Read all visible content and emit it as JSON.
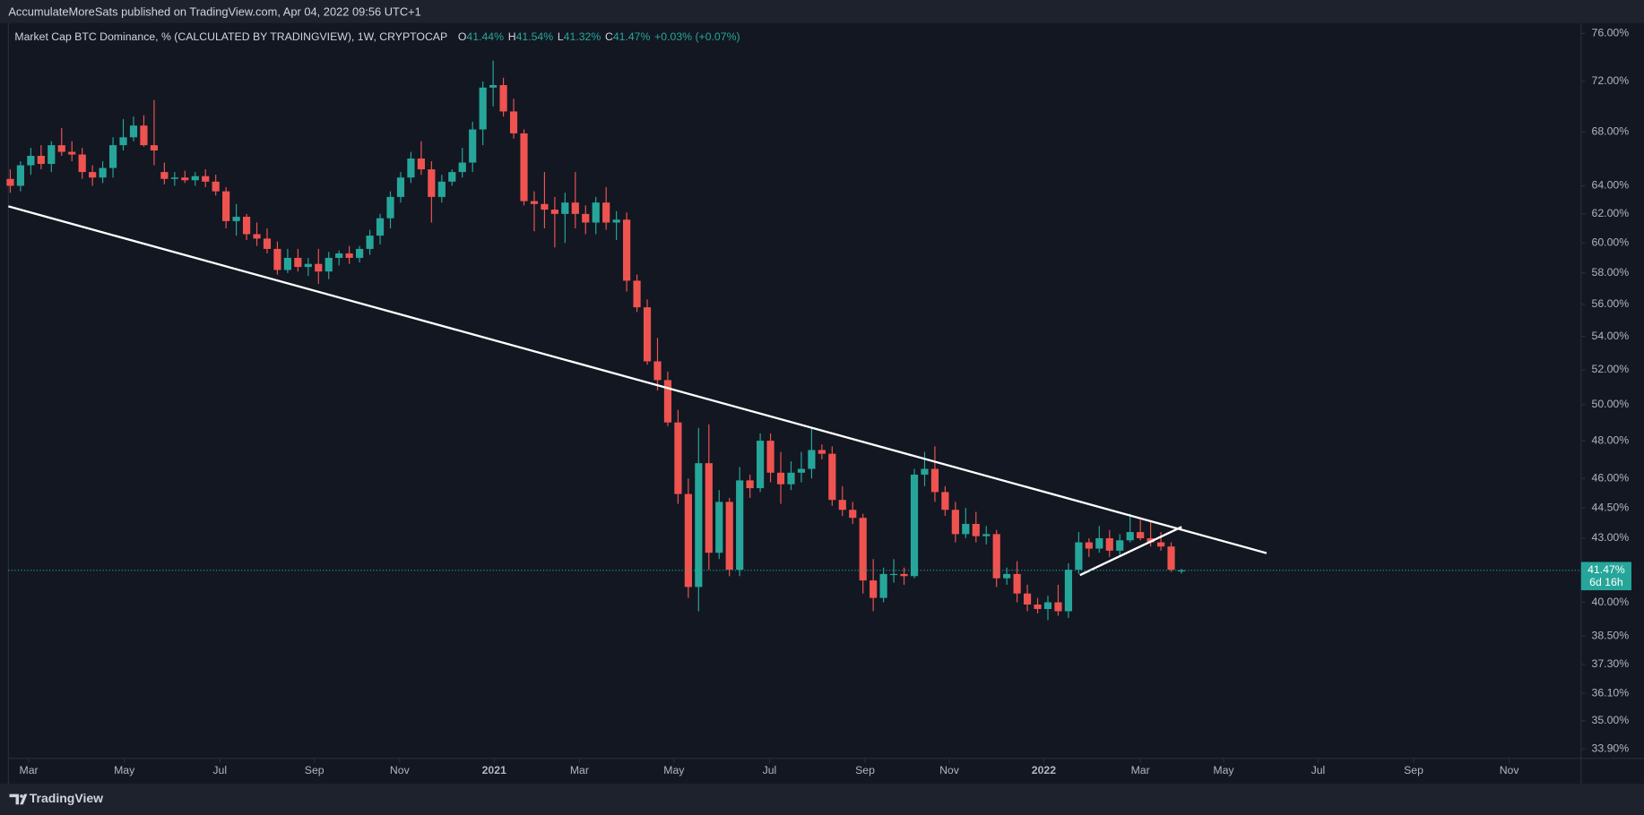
{
  "header": {
    "publisher": "AccumulateMoreSats published on TradingView.com, Apr 04, 2022 09:56 UTC+1"
  },
  "chart_data": {
    "type": "candlestick",
    "title": "Market Cap BTC Dominance, % (CALCULATED BY TRADINGVIEW), 1W, CRYPTOCAP",
    "legend": [
      {
        "key": "O",
        "value": "41.44%"
      },
      {
        "key": "H",
        "value": "41.54%"
      },
      {
        "key": "L",
        "value": "41.32%"
      },
      {
        "key": "C",
        "value": "41.47%"
      }
    ],
    "change": "+0.03% (+0.07%)",
    "open": [
      64.5,
      64.0,
      65.5,
      66.2,
      65.6,
      67.0,
      66.5,
      66.3,
      65.0,
      64.6,
      65.3,
      67.0,
      67.6,
      68.5,
      67.0,
      65.0,
      64.5,
      64.6,
      64.4,
      64.7,
      64.3,
      63.6,
      61.5,
      61.8,
      60.6,
      60.3,
      59.6,
      58.2,
      59.0,
      58.4,
      58.6,
      58.1,
      59.0,
      59.3,
      59.0,
      59.6,
      60.5,
      61.7,
      63.2,
      64.6,
      66.0,
      65.2,
      63.2,
      64.3,
      65.0,
      65.7,
      68.2,
      71.5,
      71.7,
      69.6,
      67.9,
      62.9,
      62.7,
      62.3,
      62.0,
      62.8,
      62.0,
      61.4,
      62.8,
      61.4,
      61.6,
      57.5,
      55.8,
      52.5,
      51.4,
      49.0,
      45.2,
      40.7,
      46.8,
      42.3,
      44.8,
      41.5,
      45.9,
      45.5,
      48.0,
      46.3,
      45.7,
      46.3,
      46.5,
      47.5,
      47.3,
      44.9,
      44.4,
      44.0,
      41.0,
      40.2,
      41.3,
      41.3,
      41.2,
      46.2,
      46.5,
      45.3,
      44.4,
      43.2,
      43.7,
      43.1,
      43.2,
      41.1,
      41.3,
      40.4,
      39.9,
      39.7,
      40.0,
      39.6,
      41.5,
      42.8,
      42.5,
      43.0,
      42.4,
      42.9,
      43.3,
      43.0,
      42.8,
      42.6,
      41.44
    ],
    "high": [
      65.2,
      65.8,
      66.8,
      67.0,
      67.3,
      68.3,
      67.3,
      66.8,
      65.5,
      65.8,
      67.6,
      69.0,
      69.2,
      69.3,
      70.5,
      65.7,
      65.0,
      65.1,
      65.0,
      65.2,
      64.8,
      63.9,
      62.7,
      62.0,
      61.4,
      61.0,
      60.1,
      59.6,
      59.6,
      59.0,
      59.6,
      59.4,
      59.5,
      59.8,
      59.8,
      60.9,
      62.0,
      63.6,
      65.0,
      66.5,
      67.3,
      65.8,
      64.8,
      65.2,
      66.8,
      68.8,
      72.0,
      73.7,
      72.3,
      70.6,
      68.2,
      63.6,
      65.0,
      63.2,
      63.5,
      65.0,
      62.6,
      63.2,
      63.9,
      62.2,
      62.1,
      57.9,
      56.3,
      53.9,
      51.9,
      49.7,
      46.0,
      48.7,
      48.9,
      45.4,
      45.0,
      46.6,
      46.2,
      48.4,
      48.4,
      47.4,
      46.9,
      47.4,
      48.7,
      47.8,
      47.7,
      45.6,
      44.8,
      44.2,
      42.0,
      41.6,
      42.0,
      41.6,
      46.5,
      47.4,
      47.7,
      45.6,
      44.8,
      44.5,
      44.3,
      43.6,
      43.4,
      41.6,
      41.9,
      40.8,
      40.2,
      40.3,
      40.8,
      41.8,
      43.3,
      43.0,
      43.6,
      43.4,
      43.2,
      44.2,
      43.9,
      43.8,
      43.3,
      42.8,
      41.54
    ],
    "low": [
      63.5,
      63.6,
      64.8,
      65.2,
      65.0,
      66.2,
      65.8,
      64.5,
      64.0,
      64.2,
      64.6,
      66.6,
      67.3,
      66.9,
      65.5,
      64.1,
      64.0,
      64.2,
      64.0,
      63.9,
      63.3,
      61.0,
      60.5,
      60.2,
      59.8,
      59.3,
      57.9,
      58.0,
      58.1,
      57.8,
      57.3,
      57.6,
      58.5,
      58.6,
      58.7,
      59.2,
      59.9,
      61.0,
      62.8,
      64.2,
      64.8,
      61.4,
      62.8,
      64.0,
      64.6,
      65.0,
      67.0,
      70.0,
      69.2,
      67.5,
      62.6,
      60.8,
      61.0,
      59.7,
      60.0,
      61.0,
      60.6,
      60.6,
      60.9,
      60.2,
      56.8,
      55.5,
      52.3,
      50.8,
      48.8,
      44.7,
      40.2,
      39.6,
      41.5,
      42.0,
      41.2,
      41.2,
      45.0,
      45.3,
      45.8,
      44.7,
      45.4,
      45.8,
      46.0,
      47.0,
      44.6,
      44.1,
      43.7,
      40.4,
      39.6,
      40.0,
      40.9,
      40.8,
      41.1,
      45.6,
      44.8,
      44.1,
      42.8,
      43.0,
      42.8,
      42.7,
      40.7,
      40.8,
      40.0,
      39.6,
      39.5,
      39.2,
      39.4,
      39.3,
      41.3,
      42.1,
      42.3,
      42.1,
      42.2,
      42.8,
      42.9,
      42.6,
      42.4,
      41.4,
      41.32
    ],
    "close": [
      64.0,
      65.5,
      66.2,
      65.6,
      67.0,
      66.5,
      66.3,
      65.0,
      64.6,
      65.3,
      67.0,
      67.6,
      68.5,
      67.0,
      66.6,
      64.5,
      64.6,
      64.4,
      64.7,
      64.3,
      63.6,
      61.5,
      61.8,
      60.6,
      60.3,
      59.6,
      58.2,
      59.0,
      58.4,
      58.6,
      58.1,
      59.0,
      59.3,
      59.0,
      59.6,
      60.5,
      61.7,
      63.2,
      64.6,
      66.0,
      65.2,
      63.2,
      64.3,
      65.0,
      65.7,
      68.2,
      71.5,
      71.7,
      69.6,
      67.9,
      62.9,
      62.7,
      62.3,
      62.0,
      62.8,
      62.0,
      61.4,
      62.8,
      61.4,
      61.6,
      57.5,
      55.8,
      52.5,
      51.4,
      49.0,
      45.2,
      40.7,
      46.8,
      42.3,
      44.8,
      41.5,
      45.9,
      45.5,
      48.0,
      46.3,
      45.7,
      46.3,
      46.5,
      47.5,
      47.3,
      44.9,
      44.4,
      44.0,
      41.0,
      40.2,
      41.3,
      41.3,
      41.2,
      46.2,
      46.5,
      45.3,
      44.4,
      43.2,
      43.7,
      43.1,
      43.2,
      41.1,
      41.3,
      40.4,
      39.9,
      39.7,
      40.0,
      39.6,
      41.5,
      42.8,
      42.5,
      43.0,
      42.4,
      42.9,
      43.3,
      43.0,
      42.8,
      42.6,
      41.5,
      41.47
    ],
    "colors": {
      "up": "#26a69a",
      "down": "#ef5350"
    },
    "log_scale": true,
    "xlim": [
      -1,
      152.9
    ],
    "ylim": [
      33.54,
      76.9
    ],
    "yticks": [
      {
        "value": 76,
        "label": "76.00%"
      },
      {
        "value": 72,
        "label": "72.00%"
      },
      {
        "value": 68,
        "label": "68.00%"
      },
      {
        "value": 64,
        "label": "64.00%"
      },
      {
        "value": 62,
        "label": "62.00%"
      },
      {
        "value": 60,
        "label": "60.00%"
      },
      {
        "value": 58,
        "label": "58.00%"
      },
      {
        "value": 56,
        "label": "56.00%"
      },
      {
        "value": 54,
        "label": "54.00%"
      },
      {
        "value": 52,
        "label": "52.00%"
      },
      {
        "value": 50,
        "label": "50.00%"
      },
      {
        "value": 48,
        "label": "48.00%"
      },
      {
        "value": 46,
        "label": "46.00%"
      },
      {
        "value": 44.5,
        "label": "44.50%"
      },
      {
        "value": 43,
        "label": "43.00%"
      },
      {
        "value": 40,
        "label": "40.00%"
      },
      {
        "value": 38.5,
        "label": "38.50%"
      },
      {
        "value": 37.3,
        "label": "37.30%"
      },
      {
        "value": 36.1,
        "label": "36.10%"
      },
      {
        "value": 35,
        "label": "35.00%"
      },
      {
        "value": 33.9,
        "label": "33.90%"
      }
    ],
    "xticks": [
      {
        "value": 1.8,
        "label": "Mar"
      },
      {
        "value": 11.1,
        "label": "May"
      },
      {
        "value": 20.4,
        "label": "Jul"
      },
      {
        "value": 29.6,
        "label": "Sep"
      },
      {
        "value": 37.9,
        "label": "Nov"
      },
      {
        "value": 47.1,
        "label": "2021"
      },
      {
        "value": 55.4,
        "label": "Mar"
      },
      {
        "value": 64.6,
        "label": "May"
      },
      {
        "value": 73.9,
        "label": "Jul"
      },
      {
        "value": 83.2,
        "label": "Sep"
      },
      {
        "value": 91.4,
        "label": "Nov"
      },
      {
        "value": 100.6,
        "label": "2022"
      },
      {
        "value": 110,
        "label": "Mar"
      },
      {
        "value": 118.1,
        "label": "May"
      },
      {
        "value": 127.3,
        "label": "Jul"
      },
      {
        "value": 136.6,
        "label": "Sep"
      },
      {
        "value": 145.9,
        "label": "Nov"
      }
    ],
    "last_price": {
      "value": 41.47,
      "label": "41.47%",
      "countdown": "6d 16h"
    }
  },
  "footer": {
    "brand": "TradingView"
  }
}
